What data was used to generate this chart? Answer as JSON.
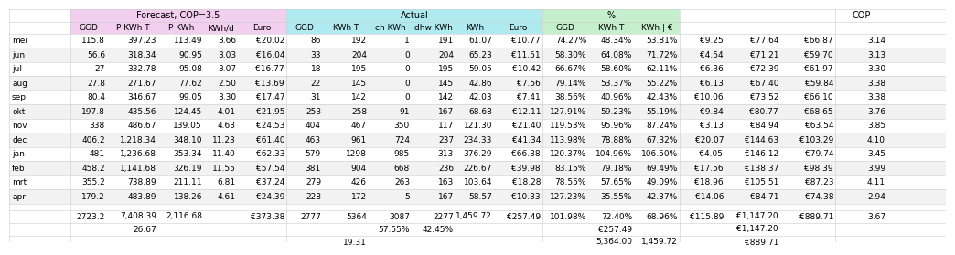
{
  "color_forecast_header": "#F2CEEF",
  "color_actual_header": "#AEEAEF",
  "color_pct_header": "#C6EFCE",
  "bg_color": "#FFFFFF",
  "rows": [
    [
      "mei",
      "115.8",
      "397.23",
      "113.49",
      "3.66",
      "€20.02",
      "86",
      "192",
      "1",
      "191",
      "61.07",
      "€10.77",
      "74.27%",
      "48.34%",
      "53.81%",
      "€9.25",
      "€77.64",
      "€66.87",
      "3.14"
    ],
    [
      "jun",
      "56.6",
      "318.34",
      "90.95",
      "3.03",
      "€16.04",
      "33",
      "204",
      "0",
      "204",
      "65.23",
      "€11.51",
      "58.30%",
      "64.08%",
      "71.72%",
      "€4.54",
      "€71.21",
      "€59.70",
      "3.13"
    ],
    [
      "jul",
      "27",
      "332.78",
      "95.08",
      "3.07",
      "€16.77",
      "18",
      "195",
      "0",
      "195",
      "59.05",
      "€10.42",
      "66.67%",
      "58.60%",
      "62.11%",
      "€6.36",
      "€72.39",
      "€61.97",
      "3.30"
    ],
    [
      "aug",
      "27.8",
      "271.67",
      "77.62",
      "2.50",
      "€13.69",
      "22",
      "145",
      "0",
      "145",
      "42.86",
      "€7.56",
      "79.14%",
      "53.37%",
      "55.22%",
      "€6.13",
      "€67.40",
      "€59.84",
      "3.38"
    ],
    [
      "sep",
      "80.4",
      "346.67",
      "99.05",
      "3.30",
      "€17.47",
      "31",
      "142",
      "0",
      "142",
      "42.03",
      "€7.41",
      "38.56%",
      "40.96%",
      "42.43%",
      "€10.06",
      "€73.52",
      "€66.10",
      "3.38"
    ],
    [
      "okt",
      "197.8",
      "435.56",
      "124.45",
      "4.01",
      "€21.95",
      "253",
      "258",
      "91",
      "167",
      "68.68",
      "€12.11",
      "127.91%",
      "59.23%",
      "55.19%",
      "€9.84",
      "€80.77",
      "€68.65",
      "3.76"
    ],
    [
      "nov",
      "338",
      "486.67",
      "139.05",
      "4.63",
      "€24.53",
      "404",
      "467",
      "350",
      "117",
      "121.30",
      "€21.40",
      "119.53%",
      "95.96%",
      "87.24%",
      "€3.13",
      "€84.94",
      "€63.54",
      "3.85"
    ],
    [
      "dec",
      "406.2",
      "1,218.34",
      "348.10",
      "11.23",
      "€61.40",
      "463",
      "961",
      "724",
      "237",
      "234.33",
      "€41.34",
      "113.98%",
      "78.88%",
      "67.32%",
      "€20.07",
      "€144.63",
      "€103.29",
      "4.10"
    ],
    [
      "jan",
      "481",
      "1,236.68",
      "353.34",
      "11.40",
      "€62.33",
      "579",
      "1298",
      "985",
      "313",
      "376.29",
      "€66.38",
      "120.37%",
      "104.96%",
      "106.50%",
      "-€4.05",
      "€146.12",
      "€79.74",
      "3.45"
    ],
    [
      "feb",
      "458.2",
      "1,141.68",
      "326.19",
      "11.55",
      "€57.54",
      "381",
      "904",
      "668",
      "236",
      "226.67",
      "€39.98",
      "83.15%",
      "79.18%",
      "69.49%",
      "€17.56",
      "€138.37",
      "€98.39",
      "3.99"
    ],
    [
      "mrt",
      "355.2",
      "738.89",
      "211.11",
      "6.81",
      "€37.24",
      "279",
      "426",
      "263",
      "163",
      "103.64",
      "€18.28",
      "78.55%",
      "57.65%",
      "49.09%",
      "€18.96",
      "€105.51",
      "€87.23",
      "4.11"
    ],
    [
      "apr",
      "179.2",
      "483.89",
      "138.26",
      "4.61",
      "€24.39",
      "228",
      "172",
      "5",
      "167",
      "58.57",
      "€10.33",
      "127.23%",
      "35.55%",
      "42.37%",
      "€14.06",
      "€84.71",
      "€74.38",
      "2.94"
    ]
  ],
  "tot1": [
    "",
    "2723.2",
    "7,408.39",
    "2,116.68",
    "",
    "€373.38",
    "2777",
    "5364",
    "3087",
    "2277",
    "1,459.72",
    "€257.49",
    "101.98%",
    "72.40%",
    "68.96%",
    "€115.89",
    "€1,147.20",
    "€889.71",
    "3.67"
  ],
  "tot2": [
    "",
    "",
    "26.67",
    "",
    "",
    "",
    "",
    "",
    "57.55%",
    "42.45%",
    "",
    "",
    "",
    "€257.49",
    "",
    "",
    "€1,147.20",
    "",
    ""
  ],
  "tot3": [
    "",
    "",
    "",
    "",
    "",
    "",
    "",
    "19.31",
    "",
    "",
    "",
    "",
    "",
    "5,364.00",
    "1,459.72",
    "",
    "€889.71",
    "",
    ""
  ],
  "col_headers2": [
    "GGD",
    "P KWh T",
    "P KWh",
    "KWh/d",
    "Euro",
    "GGD",
    "KWh T",
    "ch KWh",
    "dhw KWh",
    "KWh",
    "Euro",
    "GGD",
    "KWh T",
    "KWh | €"
  ],
  "header1_forecast": "Forecast, COP=3.5",
  "header1_actual": "Actual",
  "header1_pct": "%",
  "header1_cop": "COP"
}
